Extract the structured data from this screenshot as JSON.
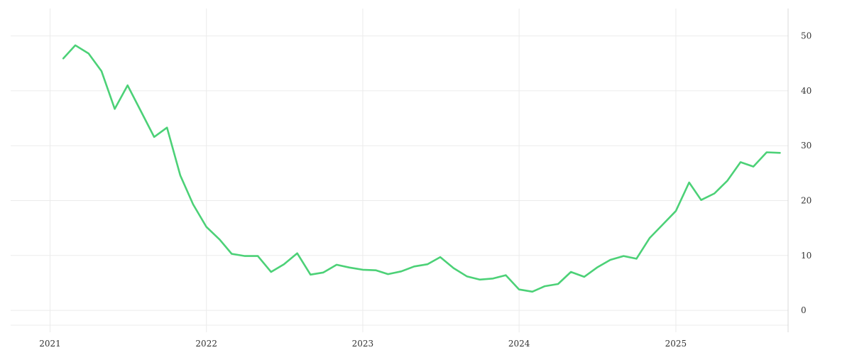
{
  "chart_data": {
    "type": "line",
    "title": "",
    "xlabel": "",
    "ylabel": "",
    "x_ticks": [
      "2021",
      "2022",
      "2023",
      "2024",
      "2025"
    ],
    "y_ticks": [
      0,
      10,
      20,
      30,
      40,
      50
    ],
    "ylim": [
      -4,
      55
    ],
    "xlim": [
      "2020-10-01",
      "2025-09-20"
    ],
    "y_axis_position": "right",
    "grid": true,
    "series": [
      {
        "color": "#4cd177",
        "x": [
          "2021-02-01",
          "2021-03-01",
          "2021-04-01",
          "2021-05-01",
          "2021-06-01",
          "2021-07-01",
          "2021-08-01",
          "2021-09-01",
          "2021-10-01",
          "2021-11-01",
          "2021-12-01",
          "2022-01-01",
          "2022-02-01",
          "2022-03-01",
          "2022-04-01",
          "2022-05-01",
          "2022-06-01",
          "2022-07-01",
          "2022-08-01",
          "2022-09-01",
          "2022-10-01",
          "2022-11-01",
          "2022-12-01",
          "2023-01-01",
          "2023-02-01",
          "2023-03-01",
          "2023-04-01",
          "2023-05-01",
          "2023-06-01",
          "2023-07-01",
          "2023-08-01",
          "2023-09-01",
          "2023-10-01",
          "2023-11-01",
          "2023-12-01",
          "2024-01-01",
          "2024-02-01",
          "2024-03-01",
          "2024-04-01",
          "2024-05-01",
          "2024-06-01",
          "2024-07-01",
          "2024-08-01",
          "2024-09-01",
          "2024-10-01",
          "2024-11-01",
          "2024-12-01",
          "2025-01-01",
          "2025-02-01",
          "2025-03-01",
          "2025-04-01",
          "2025-05-01",
          "2025-06-01",
          "2025-07-01",
          "2025-08-01",
          "2025-09-01"
        ],
        "values": [
          45.9,
          48.3,
          46.8,
          43.6,
          36.7,
          41.0,
          36.3,
          31.6,
          33.3,
          24.6,
          19.3,
          15.2,
          12.9,
          10.3,
          9.9,
          9.9,
          7.0,
          8.4,
          10.4,
          6.5,
          6.9,
          8.3,
          7.8,
          7.4,
          7.3,
          6.6,
          7.1,
          8.0,
          8.4,
          9.7,
          7.7,
          6.2,
          5.6,
          5.8,
          6.4,
          3.8,
          3.4,
          4.4,
          4.8,
          7.0,
          6.1,
          7.8,
          9.2,
          9.9,
          9.4,
          13.2,
          15.6,
          18.1,
          23.3,
          20.1,
          21.3,
          23.6,
          27.0,
          26.2,
          28.8,
          28.7
        ]
      }
    ]
  }
}
